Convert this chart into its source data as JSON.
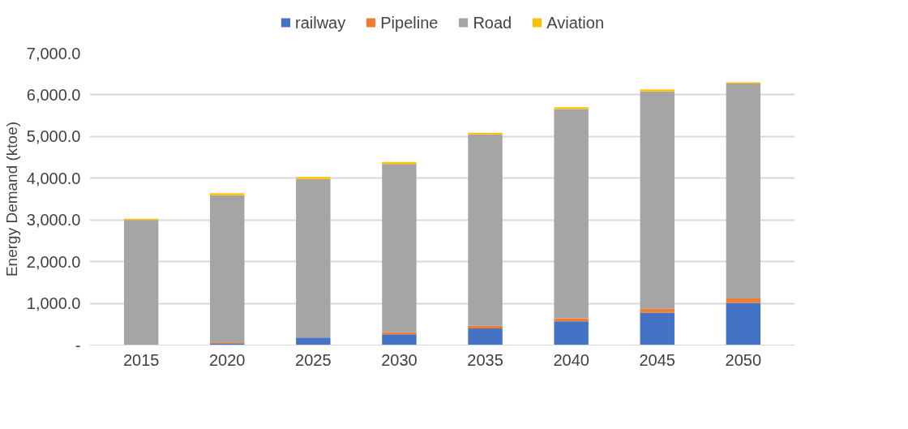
{
  "chart_data": {
    "type": "bar",
    "stacked": true,
    "ylabel": "Energy Demand (ktoe)",
    "categories": [
      "2015",
      "2020",
      "2025",
      "2030",
      "2035",
      "2040",
      "2045",
      "2050"
    ],
    "series": [
      {
        "name": "railway",
        "color": "#4472c4",
        "values": [
          0,
          30,
          180,
          260,
          400,
          570,
          780,
          1010
        ]
      },
      {
        "name": "Pipeline",
        "color": "#ed7d31",
        "values": [
          null,
          20,
          null,
          50,
          60,
          70,
          90,
          110
        ]
      },
      {
        "name": "Road",
        "color": "#a5a5a5",
        "values": [
          3000,
          3540,
          3800,
          4030,
          4590,
          5020,
          5210,
          5150
        ]
      },
      {
        "name": "Aviation",
        "color": "#ffc000",
        "values": [
          30,
          50,
          50,
          50,
          40,
          40,
          50,
          30
        ]
      }
    ],
    "ylim": [
      0,
      7000
    ],
    "yticks": [
      {
        "value": 0,
        "label": "-"
      },
      {
        "value": 1000,
        "label": "1,000.0"
      },
      {
        "value": 2000,
        "label": "2,000.0"
      },
      {
        "value": 3000,
        "label": "3,000.0"
      },
      {
        "value": 4000,
        "label": "4,000.0"
      },
      {
        "value": 5000,
        "label": "5,000.0"
      },
      {
        "value": 6000,
        "label": "6,000.0"
      },
      {
        "value": 7000,
        "label": "7,000.0"
      }
    ],
    "grid": "y",
    "legend": "top"
  }
}
